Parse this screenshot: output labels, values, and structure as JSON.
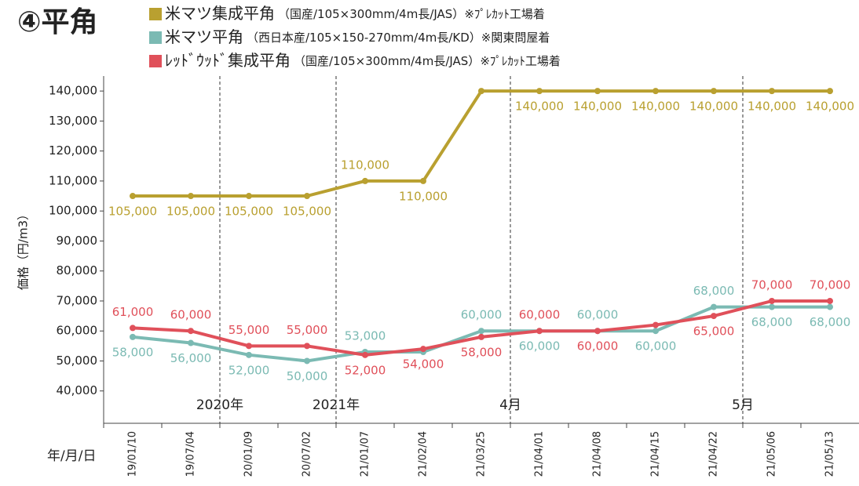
{
  "chart_data": {
    "type": "line",
    "title": "④平角",
    "y_label": "価格（円/m3）",
    "x_label": "年/月/日",
    "categories": [
      "19/01/10",
      "19/07/04",
      "20/01/09",
      "20/07/02",
      "21/01/07",
      "21/02/04",
      "21/03/25",
      "21/04/01",
      "21/04/08",
      "21/04/15",
      "21/04/22",
      "21/05/06",
      "21/05/13"
    ],
    "series": [
      {
        "name": "米マツ集成平角",
        "note": "（国産/105×300mm/4m長/JAS）※ﾌﾟﾚｶｯﾄ工場着",
        "color": "#b9a030",
        "values": [
          105000,
          105000,
          105000,
          105000,
          110000,
          110000,
          140000,
          140000,
          140000,
          140000,
          140000,
          140000,
          140000
        ],
        "value_labels": [
          "105,000",
          "105,000",
          "105,000",
          "105,000",
          "110,000",
          "110,000",
          null,
          "140,000",
          "140,000",
          "140,000",
          "140,000",
          "140,000",
          "140,000"
        ]
      },
      {
        "name": "米マツ平角",
        "note": "（西日本産/105×150-270mm/4m長/KD）※関東問屋着",
        "color": "#7bbab3",
        "values": [
          58000,
          56000,
          52000,
          50000,
          53000,
          53000,
          60000,
          60000,
          60000,
          60000,
          68000,
          68000,
          68000
        ],
        "value_labels": [
          "58,000",
          "56,000",
          "52,000",
          "50,000",
          "53,000",
          null,
          "60,000",
          "60,000",
          "60,000",
          "60,000",
          "68,000",
          "68,000",
          "68,000"
        ]
      },
      {
        "name": "ﾚｯﾄﾞｳｯﾄﾞ集成平角",
        "note": "（国産/105×300mm/4m長/JAS）※ﾌﾟﾚｶｯﾄ工場着",
        "color": "#e0505a",
        "values": [
          61000,
          60000,
          55000,
          55000,
          52000,
          54000,
          58000,
          60000,
          60000,
          62000,
          65000,
          70000,
          70000
        ],
        "value_labels": [
          "61,000",
          "60,000",
          "55,000",
          "55,000",
          "52,000",
          "54,000",
          "58,000",
          "60,000",
          "60,000",
          null,
          "65,000",
          "70,000",
          "70,000"
        ]
      }
    ],
    "annotations": [
      {
        "text": "2020年",
        "before": "20/01/09"
      },
      {
        "text": "2021年",
        "before": "21/01/07"
      },
      {
        "text": "4月",
        "before": "21/04/01"
      },
      {
        "text": "5月",
        "before": "21/05/06"
      }
    ],
    "ylim": [
      30000,
      145000
    ],
    "yticks": [
      {
        "value": 40000,
        "label": "40,000"
      },
      {
        "value": 50000,
        "label": "50,000"
      },
      {
        "value": 60000,
        "label": "60,000"
      },
      {
        "value": 70000,
        "label": "70,000"
      },
      {
        "value": 80000,
        "label": "80,000"
      },
      {
        "value": 90000,
        "label": "90,000"
      },
      {
        "value": 100000,
        "label": "100,000"
      },
      {
        "value": 110000,
        "label": "110,000"
      },
      {
        "value": 120000,
        "label": "120,000"
      },
      {
        "value": 130000,
        "label": "130,000"
      },
      {
        "value": 140000,
        "label": "140,000"
      }
    ]
  }
}
